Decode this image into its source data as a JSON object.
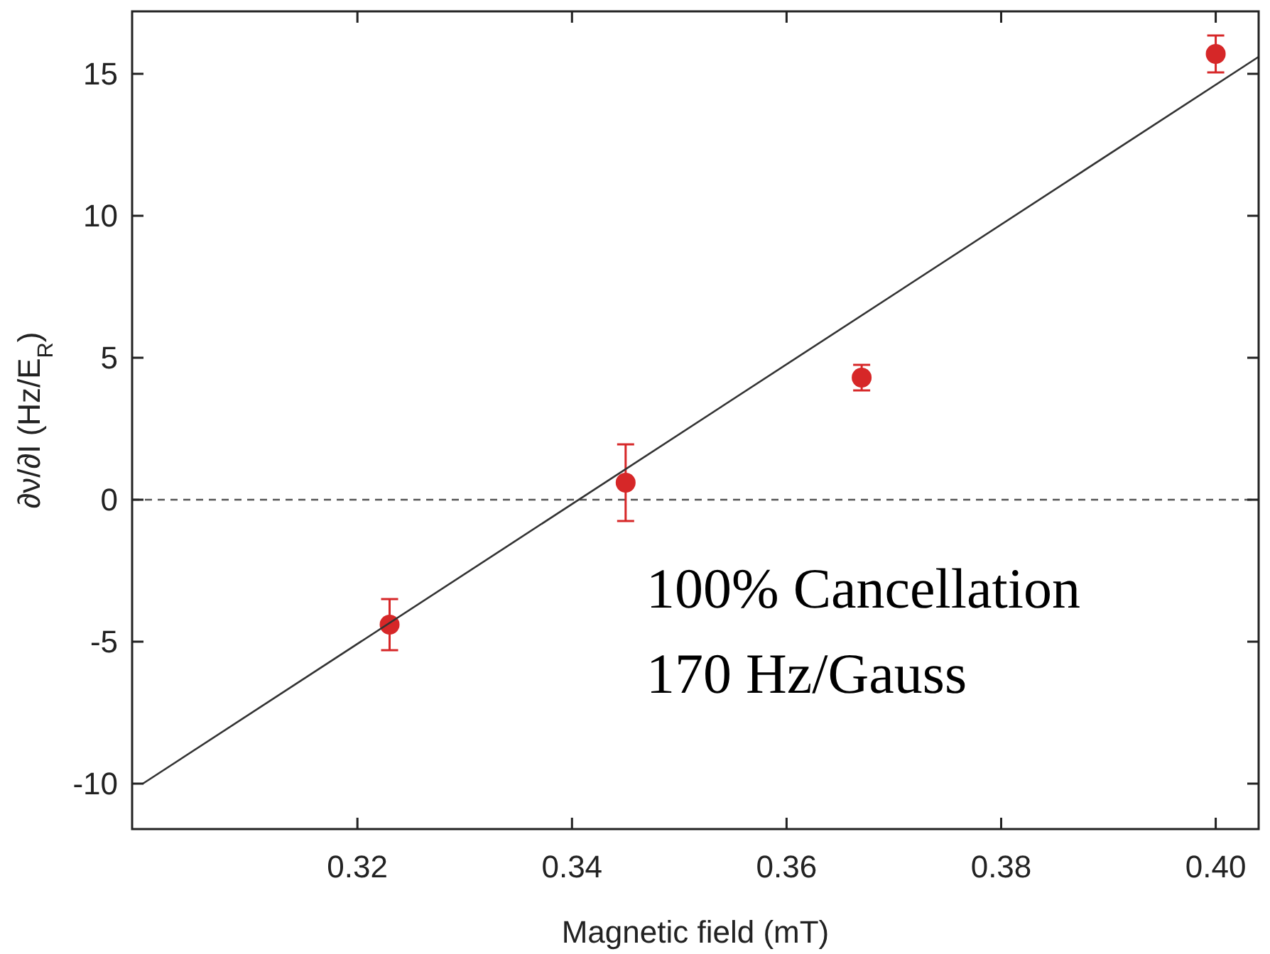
{
  "chart_data": {
    "type": "scatter",
    "xlabel": "Magnetic field (mT)",
    "ylabel": "∂ν/∂I (Hz/E$_{R}$)",
    "xlim": [
      0.299,
      0.404
    ],
    "xticks": [
      {
        "value": 0.32,
        "label": "0.32"
      },
      {
        "value": 0.34,
        "label": "0.34"
      },
      {
        "value": 0.36,
        "label": "0.36"
      },
      {
        "value": 0.38,
        "label": "0.38"
      },
      {
        "value": 0.4,
        "label": "0.40"
      }
    ],
    "ylim": [
      -11.6,
      17.2
    ],
    "yticks": [
      -10,
      -5,
      0,
      5,
      10,
      15
    ],
    "series": [
      {
        "color": "#d62728",
        "x": [
          0.323,
          0.345,
          0.367,
          0.4
        ],
        "values": [
          -4.4,
          0.6,
          4.3,
          15.7
        ],
        "errors": [
          0.9,
          [
            -0.75,
            1.95
          ],
          0.45,
          0.65
        ],
        "marker": "circle"
      },
      {
        "type": "line",
        "color": "#333333",
        "x": [
          0.3,
          0.404
        ],
        "values": [
          -10,
          15.6
        ]
      }
    ],
    "ref_lines": [
      {
        "axis": "y",
        "value": 0,
        "line_style": "dashed",
        "color": "#555555"
      }
    ],
    "annotations": [
      "100% Cancellation",
      "170 Hz/Gauss"
    ]
  }
}
